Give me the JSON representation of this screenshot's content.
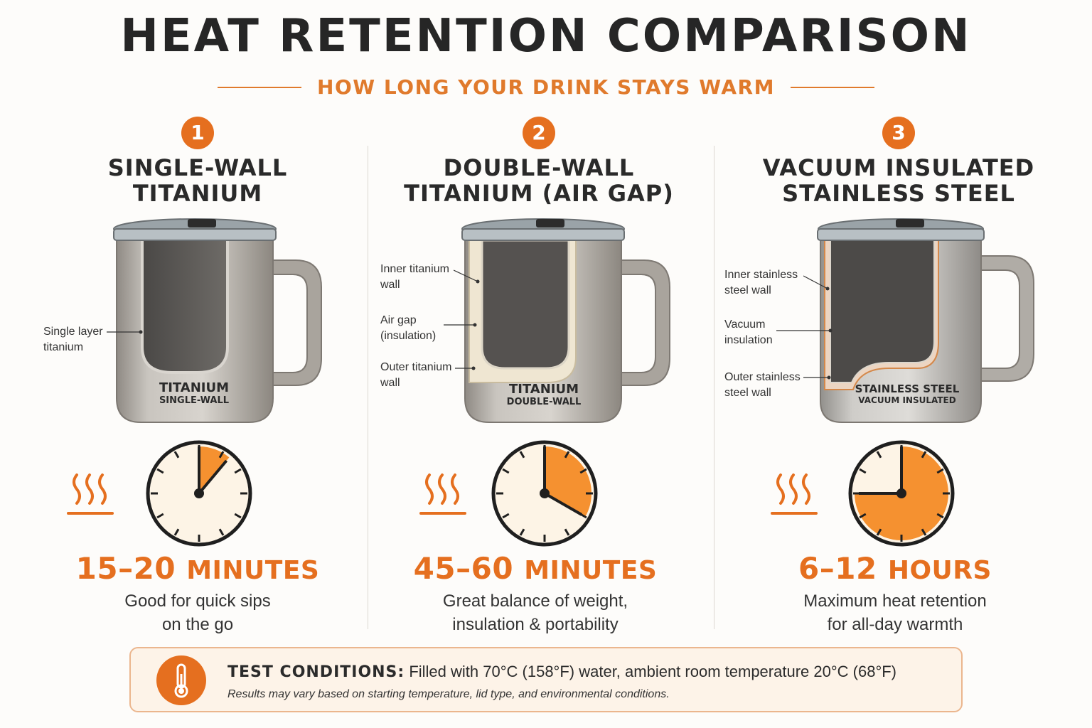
{
  "header": {
    "title": "HEAT RETENTION COMPARISON",
    "subtitle": "HOW LONG YOUR DRINK STAYS WARM"
  },
  "colors": {
    "accent": "#e56f1f",
    "accent_light": "#f5a040",
    "clock_face": "#fdf4e6"
  },
  "columns": [
    {
      "number": "1",
      "title": "SINGLE-WALL\nTITANIUM",
      "mug_label": "TITANIUM",
      "mug_sublabel": "SINGLE-WALL",
      "annotations": [
        "Single layer\ntitanium"
      ],
      "clock_fraction": 0.111,
      "time_value": "15–20",
      "time_unit": "MINUTES",
      "description": "Good for quick sips\non the go"
    },
    {
      "number": "2",
      "title": "DOUBLE-WALL\nTITANIUM (AIR GAP)",
      "mug_label": "TITANIUM",
      "mug_sublabel": "DOUBLE-WALL",
      "annotations": [
        "Inner titanium\nwall",
        "Air gap\n(insulation)",
        "Outer titanium\nwall"
      ],
      "clock_fraction": 0.333,
      "time_value": "45–60",
      "time_unit": "MINUTES",
      "description": "Great balance of weight,\ninsulation & portability"
    },
    {
      "number": "3",
      "title": "VACUUM INSULATED\nSTAINLESS STEEL",
      "mug_label": "STAINLESS STEEL",
      "mug_sublabel": "VACUUM INSULATED",
      "annotations": [
        "Inner stainless\nsteel wall",
        "Vacuum\ninsulation",
        "Outer stainless\nsteel wall"
      ],
      "clock_fraction": 0.75,
      "time_value": "6–12",
      "time_unit": "HOURS",
      "description": "Maximum heat retention\nfor all-day warmth"
    }
  ],
  "test_conditions": {
    "label": "TEST CONDITIONS:",
    "text": "Filled with 70°C (158°F) water, ambient room temperature 20°C (68°F)",
    "note": "Results may vary based on starting temperature, lid type, and environmental conditions."
  }
}
